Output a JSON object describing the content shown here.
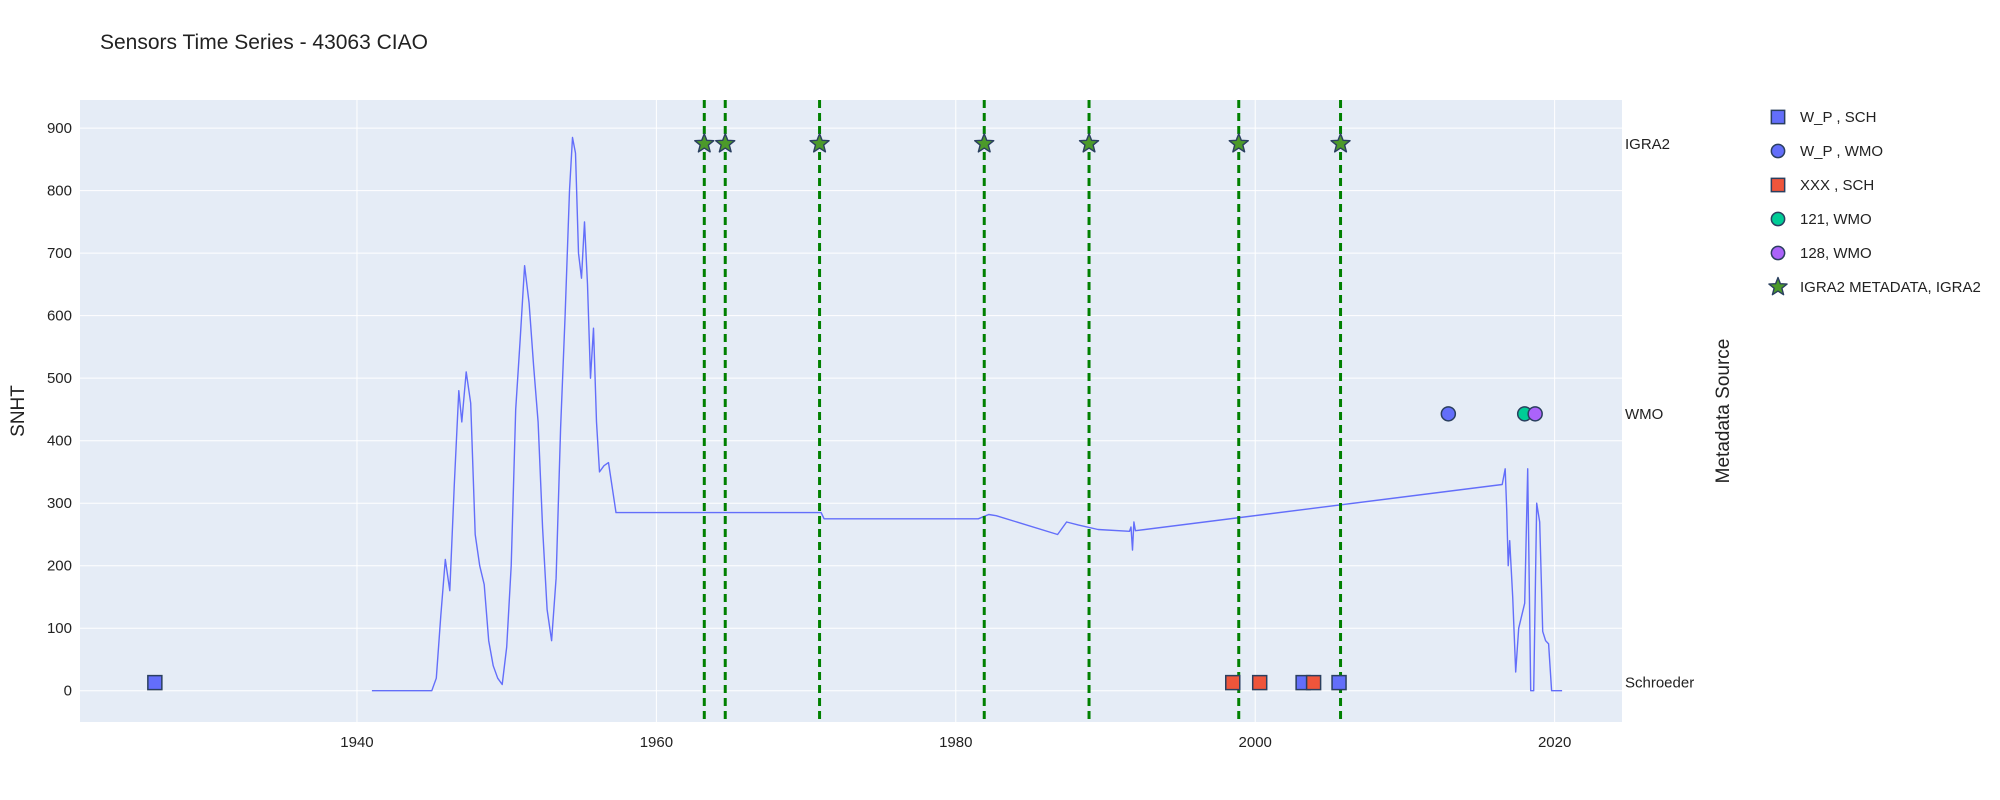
{
  "chart_data": {
    "type": "line",
    "title": "Sensors Time Series - 43063 CIAO",
    "xlabel": "",
    "ylabel": "SNHT",
    "y2label": "Metadata Source",
    "xlim": [
      1921.5,
      2024.5
    ],
    "ylim": [
      -50,
      945
    ],
    "x_ticks": [
      1940,
      1960,
      1980,
      2000,
      2020
    ],
    "y_ticks": [
      0,
      100,
      200,
      300,
      400,
      500,
      600,
      700,
      800,
      900
    ],
    "colors": {
      "plot_bg": "#e5ecf6",
      "grid": "#ffffff",
      "line": "#636efa",
      "vline": "#008000",
      "marker_outline": "#2a3f5f"
    },
    "category_axis": [
      {
        "label": "IGRA2",
        "y": 875
      },
      {
        "label": "WMO",
        "y": 443
      },
      {
        "label": "Schroeder",
        "y": 13
      }
    ],
    "snht_series": {
      "name": "SNHT",
      "color": "#636efa",
      "x": [
        1941.0,
        1945.0,
        1945.3,
        1945.6,
        1945.9,
        1946.2,
        1946.5,
        1946.8,
        1947.0,
        1947.3,
        1947.6,
        1947.9,
        1948.2,
        1948.5,
        1948.8,
        1949.1,
        1949.4,
        1949.7,
        1950.0,
        1950.3,
        1950.6,
        1950.9,
        1951.2,
        1951.5,
        1951.8,
        1952.1,
        1952.4,
        1952.7,
        1953.0,
        1953.3,
        1953.6,
        1953.9,
        1954.2,
        1954.4,
        1954.6,
        1954.8,
        1955.0,
        1955.2,
        1955.4,
        1955.6,
        1955.8,
        1956.0,
        1956.2,
        1956.5,
        1956.8,
        1957.3,
        1957.6,
        1971.0,
        1971.2,
        1981.5,
        1982.2,
        1982.7,
        1986.8,
        1987.4,
        1988.2,
        1989.5,
        1991.6,
        1991.7,
        1991.8,
        1991.9,
        1992.0,
        2016.5,
        2016.7,
        2016.8,
        2016.9,
        2017.0,
        2017.2,
        2017.4,
        2017.6,
        2017.8,
        2018.0,
        2018.2,
        2018.4,
        2018.6,
        2018.8,
        2019.0,
        2019.2,
        2019.4,
        2019.6,
        2019.8,
        2020.5
      ],
      "y": [
        0,
        0,
        20,
        120,
        210,
        160,
        330,
        480,
        430,
        510,
        460,
        250,
        200,
        170,
        80,
        40,
        20,
        10,
        70,
        200,
        450,
        560,
        680,
        620,
        520,
        430,
        260,
        130,
        80,
        180,
        420,
        600,
        800,
        885,
        860,
        700,
        660,
        750,
        650,
        500,
        580,
        430,
        350,
        360,
        365,
        285,
        285,
        285,
        275,
        275,
        282,
        280,
        250,
        270,
        265,
        258,
        255,
        262,
        225,
        270,
        256,
        330,
        355,
        290,
        200,
        240,
        150,
        30,
        100,
        120,
        140,
        355,
        0,
        0,
        300,
        270,
        95,
        80,
        75,
        0,
        0
      ]
    },
    "vertical_lines_x": [
      1963.2,
      1964.6,
      1970.9,
      1981.9,
      1988.9,
      1998.9,
      2005.7
    ],
    "legend_position": "right",
    "series": [
      {
        "name": "W_P , SCH",
        "symbol": "square",
        "color": "#636efa",
        "x": [
          1926.5,
          2003.2,
          2005.6
        ],
        "y": [
          13,
          13,
          13
        ]
      },
      {
        "name": "W_P , WMO",
        "symbol": "circle",
        "color": "#636efa",
        "x": [
          2012.9
        ],
        "y": [
          443
        ]
      },
      {
        "name": "XXX , SCH",
        "symbol": "square",
        "color": "#ef553b",
        "x": [
          1998.5,
          2000.3,
          2003.9
        ],
        "y": [
          13,
          13,
          13
        ]
      },
      {
        "name": "121, WMO",
        "symbol": "circle",
        "color": "#00cc96",
        "x": [
          2018.0
        ],
        "y": [
          443
        ]
      },
      {
        "name": "128, WMO",
        "symbol": "circle",
        "color": "#ab63fa",
        "x": [
          2018.7
        ],
        "y": [
          443
        ]
      },
      {
        "name": "IGRA2 METADATA, IGRA2",
        "symbol": "star",
        "color": "#4c9a2a",
        "x": [
          1963.2,
          1964.6,
          1970.9,
          1981.9,
          1988.9,
          1998.9,
          2005.7
        ],
        "y": [
          875,
          875,
          875,
          875,
          875,
          875,
          875
        ]
      }
    ]
  }
}
